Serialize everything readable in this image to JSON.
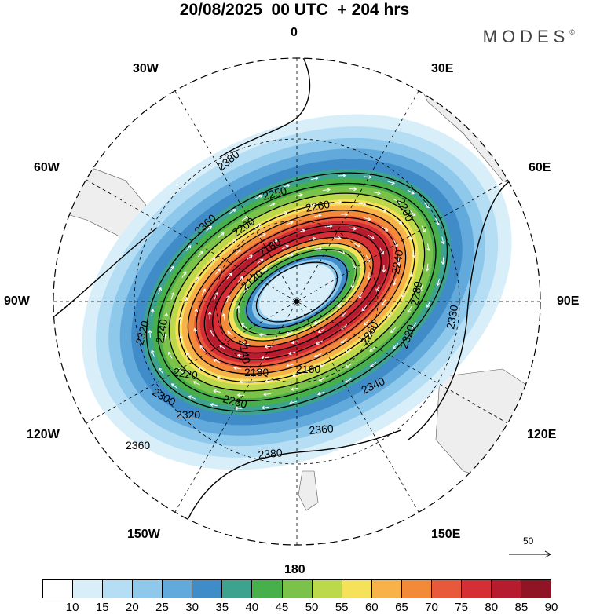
{
  "header": {
    "title": "20/08/2025  00 UTC  + 204 hrs",
    "brand": "MODES",
    "brand_mark": "©"
  },
  "longitude_labels": {
    "lon_0": "0",
    "lon_30e": "30E",
    "lon_60e": "60E",
    "lon_90e": "90E",
    "lon_120e": "120E",
    "lon_150e": "150E",
    "lon_180": "180",
    "lon_150w": "150W",
    "lon_120w": "120W",
    "lon_90w": "90W",
    "lon_60w": "60W",
    "lon_30w": "30W"
  },
  "contour_labels": [
    "2380",
    "2360",
    "2250",
    "2260",
    "2200",
    "2180",
    "2120",
    "2140",
    "2160",
    "2180",
    "2220",
    "2240",
    "2260",
    "2320",
    "2340",
    "2360",
    "2380",
    "2360",
    "2320",
    "2300",
    "2200",
    "2240",
    "2280",
    "2260",
    "2330",
    "2320"
  ],
  "colorbar": {
    "ticks": [
      "10",
      "15",
      "20",
      "25",
      "30",
      "35",
      "40",
      "45",
      "50",
      "55",
      "60",
      "65",
      "70",
      "75",
      "80",
      "85",
      "90"
    ],
    "colors": [
      "#ffffff",
      "#d8effa",
      "#b5def4",
      "#8ec9ec",
      "#62a9dc",
      "#3f8cc9",
      "#3da38e",
      "#48b04a",
      "#7ac24a",
      "#bcd94c",
      "#f5e15a",
      "#f7b24a",
      "#f28a3a",
      "#e8583b",
      "#d52e35",
      "#b61c2e",
      "#8f1424"
    ]
  },
  "vector_reference": {
    "value": "50"
  }
}
